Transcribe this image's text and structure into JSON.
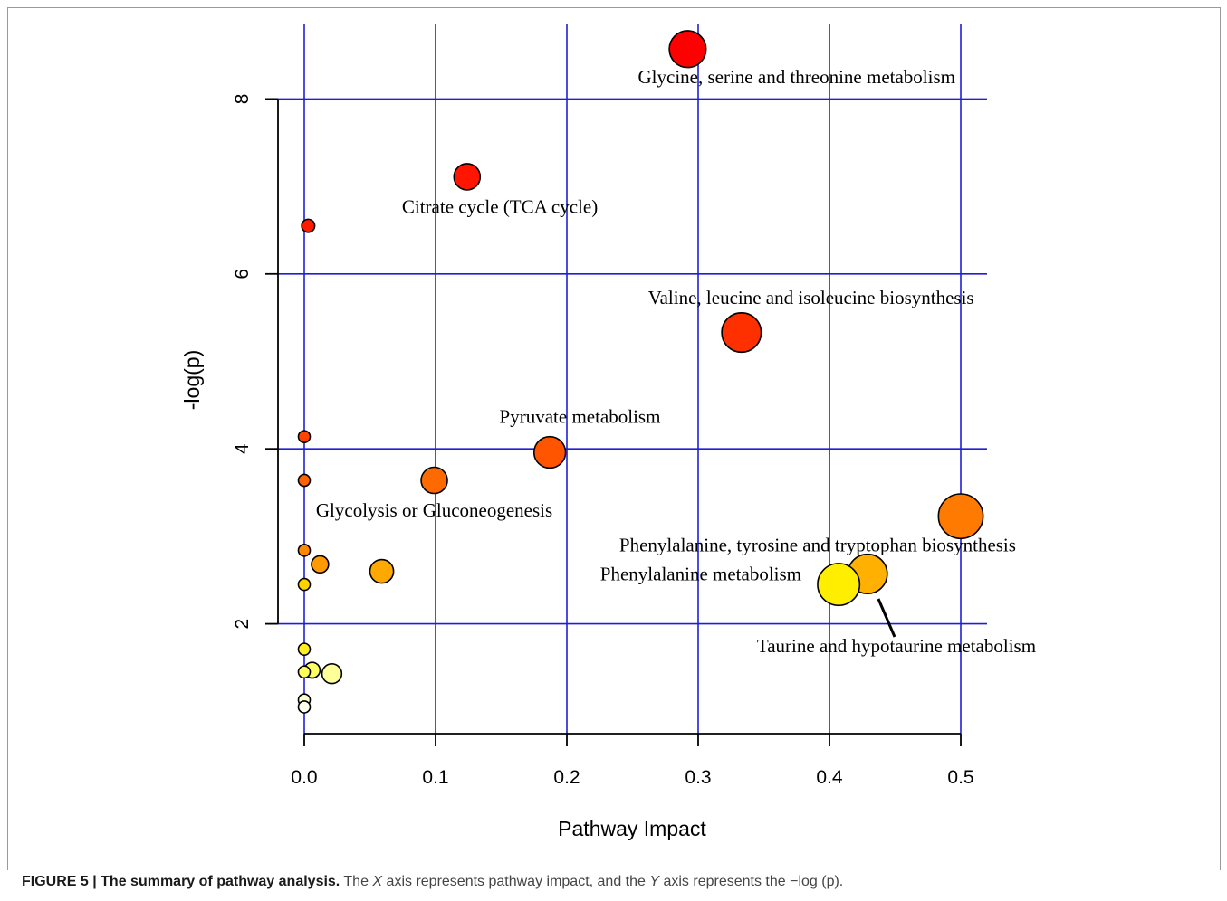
{
  "chart_data": {
    "type": "scatter",
    "xlabel": "Pathway Impact",
    "ylabel": "-log(p)",
    "xlim": [
      -0.02,
      0.52
    ],
    "ylim": [
      0.8,
      8.85
    ],
    "x_ticks": [
      "0.0",
      "0.1",
      "0.2",
      "0.3",
      "0.4",
      "0.5"
    ],
    "x_tick_values": [
      0.0,
      0.1,
      0.2,
      0.3,
      0.4,
      0.5
    ],
    "y_ticks": [
      "2",
      "4",
      "6",
      "8"
    ],
    "y_tick_values": [
      2,
      4,
      6,
      8
    ],
    "grid": true,
    "grid_color": "#1f1fd6",
    "points": [
      {
        "x": 0.292,
        "y": 8.57,
        "size": 14,
        "color": "#ff0000"
      },
      {
        "x": 0.124,
        "y": 7.11,
        "size": 10,
        "color": "#ff1500"
      },
      {
        "x": 0.003,
        "y": 6.55,
        "size": 5,
        "color": "#ff1a00"
      },
      {
        "x": 0.333,
        "y": 5.33,
        "size": 15,
        "color": "#ff3000"
      },
      {
        "x": 0.0,
        "y": 4.14,
        "size": 4.5,
        "color": "#ff4400"
      },
      {
        "x": 0.187,
        "y": 3.96,
        "size": 12,
        "color": "#ff5500"
      },
      {
        "x": 0.099,
        "y": 3.64,
        "size": 10,
        "color": "#ff6a00"
      },
      {
        "x": 0.0,
        "y": 3.64,
        "size": 4.5,
        "color": "#ff6400"
      },
      {
        "x": 0.5,
        "y": 3.23,
        "size": 17,
        "color": "#ff7a00"
      },
      {
        "x": 0.0,
        "y": 2.84,
        "size": 4.5,
        "color": "#ff8800"
      },
      {
        "x": 0.012,
        "y": 2.68,
        "size": 6.5,
        "color": "#ff9a00"
      },
      {
        "x": 0.059,
        "y": 2.6,
        "size": 9,
        "color": "#ffa800"
      },
      {
        "x": 0.429,
        "y": 2.57,
        "size": 15,
        "color": "#ffb000"
      },
      {
        "x": 0.0,
        "y": 2.45,
        "size": 4.5,
        "color": "#ffd200"
      },
      {
        "x": 0.407,
        "y": 2.45,
        "size": 16,
        "color": "#ffee00"
      },
      {
        "x": 0.0,
        "y": 1.71,
        "size": 4.5,
        "color": "#ffee22"
      },
      {
        "x": 0.006,
        "y": 1.47,
        "size": 6,
        "color": "#ffff66"
      },
      {
        "x": 0.0,
        "y": 1.45,
        "size": 4.5,
        "color": "#ffff55"
      },
      {
        "x": 0.021,
        "y": 1.43,
        "size": 7.5,
        "color": "#ffff99"
      },
      {
        "x": 0.0,
        "y": 1.13,
        "size": 4.5,
        "color": "#ffffcc"
      },
      {
        "x": 0.0,
        "y": 1.05,
        "size": 4.5,
        "color": "#ffffee"
      }
    ],
    "annotations": [
      {
        "text": "Glycine, serine and threonine metabolism",
        "x": 0.375,
        "y": 8.25
      },
      {
        "text": "Citrate cycle (TCA cycle)",
        "x": 0.149,
        "y": 6.77
      },
      {
        "text": "Valine, leucine and isoleucine biosynthesis",
        "x": 0.386,
        "y": 5.73
      },
      {
        "text": "Pyruvate metabolism",
        "x": 0.21,
        "y": 4.37
      },
      {
        "text": "Phenylalanine, tyrosine and tryptophan biosynthesis",
        "x": 0.391,
        "y": 2.9
      },
      {
        "text": "Glycolysis or Gluconeogenesis",
        "x": 0.099,
        "y": 3.3
      },
      {
        "text": "Phenylalanine metabolism",
        "x": 0.302,
        "y": 2.57
      },
      {
        "text": "Taurine and hypotaurine metabolism",
        "x": 0.451,
        "y": 1.75
      }
    ]
  },
  "caption": {
    "lead": "FIGURE 5 | The summary of pathway analysis.",
    "part1": " The ",
    "x_var": "X",
    "part2": " axis represents pathway impact, and the ",
    "y_var": "Y",
    "part3": " axis represents the −log (p)."
  }
}
